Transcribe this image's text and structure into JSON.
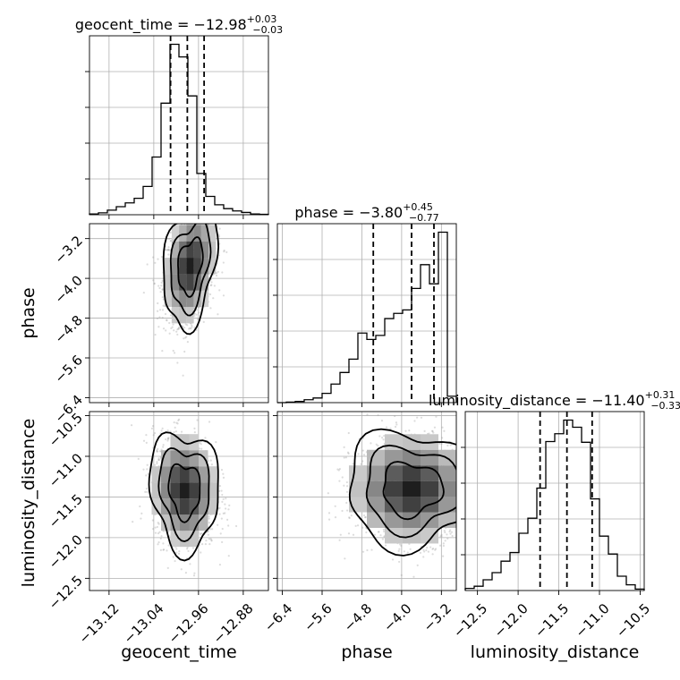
{
  "chart_data": {
    "type": "corner",
    "parameters": [
      "geocent_time",
      "phase",
      "luminosity_distance"
    ],
    "titles": [
      {
        "param": "geocent_time",
        "prefix": "geocent_time = ",
        "median": "−12.98",
        "plus": "+0.03",
        "minus": "−0.03"
      },
      {
        "param": "phase",
        "prefix": "phase = ",
        "median": "−3.80",
        "plus": "+0.45",
        "minus": "−0.77"
      },
      {
        "param": "luminosity_distance",
        "prefix": "luminosity_distance = ",
        "median": "−11.40",
        "plus": "+0.31",
        "minus": "−0.33"
      }
    ],
    "ranges": {
      "geocent_time": [
        -13.155,
        -12.835
      ],
      "phase": [
        -6.5,
        -2.9
      ],
      "luminosity_distance": [
        -12.65,
        -10.45
      ]
    },
    "ticks": {
      "geocent_time": {
        "values": [
          -13.12,
          -13.04,
          -12.96,
          -12.88
        ],
        "labels": [
          "−13.12",
          "−13.04",
          "−12.96",
          "−12.88"
        ]
      },
      "phase": {
        "values": [
          -6.4,
          -5.6,
          -4.8,
          -4.0,
          -3.2
        ],
        "labels": [
          "−6.4",
          "−5.6",
          "−4.8",
          "−4.0",
          "−3.2"
        ]
      },
      "luminosity_distance": {
        "values": [
          -12.5,
          -12.0,
          -11.5,
          -11.0,
          -10.5
        ],
        "labels": [
          "−12.5",
          "−12.0",
          "−11.5",
          "−11.0",
          "−10.5"
        ]
      }
    },
    "quantiles": {
      "geocent_time": [
        -13.01,
        -12.98,
        -12.95
      ],
      "phase": [
        -4.57,
        -3.8,
        -3.35
      ],
      "luminosity_distance": [
        -11.73,
        -11.4,
        -11.09
      ]
    },
    "histograms": {
      "geocent_time": {
        "edges": [
          -13.155,
          -13.139,
          -13.123,
          -13.107,
          -13.091,
          -13.075,
          -13.059,
          -13.043,
          -13.027,
          -13.011,
          -12.995,
          -12.979,
          -12.963,
          -12.947,
          -12.931,
          -12.915,
          -12.899,
          -12.883,
          -12.867,
          -12.851,
          -12.835
        ],
        "counts": [
          0.2,
          0.5,
          1.2,
          2.1,
          3.1,
          4.3,
          7.4,
          15.1,
          29.2,
          44.6,
          41.3,
          31.1,
          10.8,
          4.8,
          2.6,
          1.6,
          1.0,
          0.6,
          0.2,
          0.1
        ]
      },
      "phase": {
        "edges": [
          -6.5,
          -6.32,
          -6.14,
          -5.96,
          -5.78,
          -5.6,
          -5.42,
          -5.24,
          -5.06,
          -4.88,
          -4.7,
          -4.52,
          -4.34,
          -4.16,
          -3.98,
          -3.8,
          -3.62,
          -3.44,
          -3.26,
          -3.08,
          -2.9
        ],
        "counts": [
          0.0,
          0.1,
          0.2,
          0.5,
          0.8,
          1.6,
          3.2,
          5.2,
          7.5,
          12.0,
          10.9,
          11.6,
          14.5,
          15.4,
          16.0,
          19.7,
          23.8,
          20.5,
          29.4,
          1.1
        ]
      },
      "luminosity_distance": {
        "edges": [
          -12.65,
          -12.54,
          -12.43,
          -12.32,
          -12.21,
          -12.1,
          -11.99,
          -11.88,
          -11.77,
          -11.66,
          -11.55,
          -11.44,
          -11.33,
          -11.22,
          -11.11,
          -11.0,
          -10.89,
          -10.78,
          -10.67,
          -10.56,
          -10.45
        ],
        "counts": [
          0.3,
          0.6,
          1.5,
          2.5,
          4.1,
          5.3,
          8.0,
          10.1,
          14.3,
          20.8,
          21.9,
          23.8,
          22.8,
          20.7,
          12.8,
          7.6,
          5.1,
          2.0,
          0.8,
          0.2
        ]
      }
    },
    "pairs": [
      {
        "x": "geocent_time",
        "y": "phase",
        "center": [
          -12.975,
          -3.75
        ],
        "spread": [
          0.022,
          0.55
        ],
        "rho": 0.3
      },
      {
        "x": "geocent_time",
        "y": "luminosity_distance",
        "center": [
          -12.985,
          -11.42
        ],
        "spread": [
          0.028,
          0.33
        ],
        "rho": -0.1
      },
      {
        "x": "phase",
        "y": "luminosity_distance",
        "center": [
          -3.8,
          -11.4
        ],
        "spread": [
          0.6,
          0.32
        ],
        "rho": 0.0
      }
    ]
  }
}
